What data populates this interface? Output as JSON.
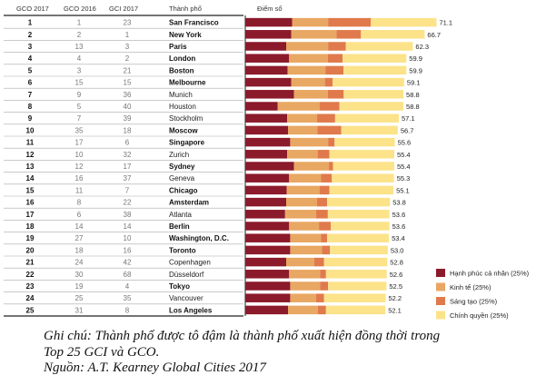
{
  "headers": {
    "gco2017": "GCO 2017",
    "gco2016": "GCO 2016",
    "gci2017": "GCI 2017",
    "city": "Thành phố",
    "score": "Điểm số"
  },
  "colors": {
    "series": [
      "#8b1a2b",
      "#e8a762",
      "#e07a4c",
      "#fce38a"
    ],
    "grid_dark": "#222222",
    "grid_light": "#aaaaaa"
  },
  "legend": [
    {
      "label": "Hạnh phúc cá nhân (25%)"
    },
    {
      "label": "Kinh tế (25%)"
    },
    {
      "label": "Sáng tạo (25%)"
    },
    {
      "label": "Chính quyền (25%)"
    }
  ],
  "chart_data": {
    "type": "bar",
    "orientation": "horizontal",
    "stacked": true,
    "xlim": [
      0,
      72
    ],
    "legend_position": "bottom-right",
    "rows": [
      {
        "gco2017": "1",
        "gco2016": "1",
        "gci2017": "23",
        "city": "San Francisco",
        "bold": true,
        "score": "71.1",
        "segments": [
          17.4,
          13.4,
          15.9,
          24.4
        ]
      },
      {
        "gco2017": "2",
        "gco2016": "2",
        "gci2017": "1",
        "city": "New York",
        "bold": true,
        "score": "66.7",
        "segments": [
          17.1,
          16.8,
          9.1,
          23.7
        ]
      },
      {
        "gco2017": "3",
        "gco2016": "13",
        "gci2017": "3",
        "city": "Paris",
        "bold": true,
        "score": "62.3",
        "segments": [
          15.2,
          15.6,
          6.6,
          24.9
        ]
      },
      {
        "gco2017": "4",
        "gco2016": "4",
        "gci2017": "2",
        "city": "London",
        "bold": true,
        "score": "59.9",
        "segments": [
          16.3,
          14.4,
          5.5,
          23.7
        ]
      },
      {
        "gco2017": "5",
        "gco2016": "3",
        "gci2017": "21",
        "city": "Boston",
        "bold": true,
        "score": "59.9",
        "segments": [
          15.7,
          14.2,
          6.6,
          23.4
        ]
      },
      {
        "gco2017": "6",
        "gco2016": "15",
        "gci2017": "15",
        "city": "Melbourne",
        "bold": true,
        "score": "59.1",
        "segments": [
          17.1,
          12.5,
          2.9,
          26.6
        ]
      },
      {
        "gco2017": "7",
        "gco2016": "9",
        "gci2017": "36",
        "city": "Munich",
        "bold": false,
        "score": "58.8",
        "segments": [
          18.1,
          12.6,
          5.9,
          22.2
        ]
      },
      {
        "gco2017": "8",
        "gco2016": "5",
        "gci2017": "40",
        "city": "Houston",
        "bold": false,
        "score": "58.8",
        "segments": [
          12.0,
          15.6,
          7.4,
          23.8
        ]
      },
      {
        "gco2017": "9",
        "gco2016": "7",
        "gci2017": "39",
        "city": "Stockholm",
        "bold": false,
        "score": "57.1",
        "segments": [
          15.6,
          11.1,
          6.7,
          23.7
        ]
      },
      {
        "gco2017": "10",
        "gco2016": "35",
        "gci2017": "18",
        "city": "Moscow",
        "bold": true,
        "score": "56.7",
        "segments": [
          15.9,
          10.9,
          8.9,
          21.0
        ]
      },
      {
        "gco2017": "11",
        "gco2016": "17",
        "gci2017": "6",
        "city": "Singapore",
        "bold": true,
        "score": "55.6",
        "segments": [
          16.7,
          14.1,
          2.4,
          22.4
        ]
      },
      {
        "gco2017": "12",
        "gco2016": "10",
        "gci2017": "32",
        "city": "Zurich",
        "bold": false,
        "score": "55.4",
        "segments": [
          15.6,
          11.3,
          4.4,
          24.1
        ]
      },
      {
        "gco2017": "13",
        "gco2016": "12",
        "gci2017": "17",
        "city": "Sydney",
        "bold": true,
        "score": "55.4",
        "segments": [
          18.1,
          13.0,
          1.5,
          22.8
        ]
      },
      {
        "gco2017": "14",
        "gco2016": "16",
        "gci2017": "37",
        "city": "Geneva",
        "bold": false,
        "score": "55.3",
        "segments": [
          16.3,
          11.8,
          4.1,
          23.1
        ]
      },
      {
        "gco2017": "15",
        "gco2016": "11",
        "gci2017": "7",
        "city": "Chicago",
        "bold": true,
        "score": "55.1",
        "segments": [
          15.4,
          12.2,
          3.7,
          23.8
        ]
      },
      {
        "gco2017": "16",
        "gco2016": "8",
        "gci2017": "22",
        "city": "Amsterdam",
        "bold": true,
        "score": "53.8",
        "segments": [
          15.2,
          11.5,
          3.7,
          23.4
        ]
      },
      {
        "gco2017": "17",
        "gco2016": "6",
        "gci2017": "38",
        "city": "Atlanta",
        "bold": false,
        "score": "53.6",
        "segments": [
          14.8,
          11.5,
          4.4,
          22.9
        ]
      },
      {
        "gco2017": "18",
        "gco2016": "14",
        "gci2017": "14",
        "city": "Berlin",
        "bold": true,
        "score": "53.6",
        "segments": [
          16.3,
          11.1,
          4.4,
          21.8
        ]
      },
      {
        "gco2017": "19",
        "gco2016": "27",
        "gci2017": "10",
        "city": "Washington, D.C.",
        "bold": true,
        "score": "53.4",
        "segments": [
          16.7,
          11.5,
          2.2,
          23.0
        ]
      },
      {
        "gco2017": "20",
        "gco2016": "18",
        "gci2017": "16",
        "city": "Toronto",
        "bold": true,
        "score": "53.0",
        "segments": [
          16.7,
          11.8,
          3.0,
          21.5
        ]
      },
      {
        "gco2017": "21",
        "gco2016": "24",
        "gci2017": "42",
        "city": "Copenhagen",
        "bold": false,
        "score": "52.8",
        "segments": [
          15.2,
          10.4,
          3.7,
          23.5
        ]
      },
      {
        "gco2017": "22",
        "gco2016": "30",
        "gci2017": "68",
        "city": "Düsseldorf",
        "bold": false,
        "score": "52.6",
        "segments": [
          16.3,
          11.5,
          2.2,
          22.6
        ]
      },
      {
        "gco2017": "23",
        "gco2016": "19",
        "gci2017": "4",
        "city": "Tokyo",
        "bold": true,
        "score": "52.5",
        "segments": [
          16.7,
          11.1,
          3.0,
          21.7
        ]
      },
      {
        "gco2017": "24",
        "gco2016": "25",
        "gci2017": "35",
        "city": "Vancouver",
        "bold": false,
        "score": "52.2",
        "segments": [
          16.7,
          9.6,
          3.0,
          22.9
        ]
      },
      {
        "gco2017": "25",
        "gco2016": "31",
        "gci2017": "8",
        "city": "Los Angeles",
        "bold": true,
        "score": "52.1",
        "segments": [
          15.9,
          11.1,
          3.0,
          22.1
        ]
      }
    ]
  },
  "notes": {
    "line1": "Ghi chú: Thành phố được tô đậm là thành phố xuất hiện đồng thời trong",
    "line2": "Top 25 GCI và GCO.",
    "line3": "Nguồn: A.T. Kearney Global Cities 2017"
  }
}
